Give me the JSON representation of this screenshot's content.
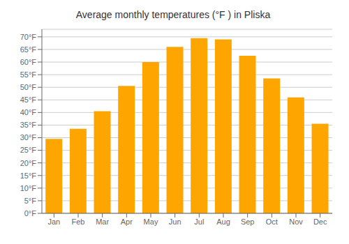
{
  "chart_data": {
    "type": "bar",
    "title": "Average monthly temperatures (°F ) in Pliska",
    "categories": [
      "Jan",
      "Feb",
      "Mar",
      "Apr",
      "May",
      "Jun",
      "Jul",
      "Aug",
      "Sep",
      "Oct",
      "Nov",
      "Dec"
    ],
    "values": [
      29.5,
      33.5,
      40.5,
      50.5,
      60.0,
      66.0,
      69.5,
      69.0,
      62.5,
      53.5,
      46.0,
      35.5
    ],
    "color": "#FFA500",
    "ylim": [
      0,
      73
    ],
    "yticks": [
      {
        "value": 0,
        "label": "0°F"
      },
      {
        "value": 5,
        "label": "5°F"
      },
      {
        "value": 10,
        "label": "10°F"
      },
      {
        "value": 15,
        "label": "15°F"
      },
      {
        "value": 20,
        "label": "20°F"
      },
      {
        "value": 25,
        "label": "25°F"
      },
      {
        "value": 30,
        "label": "30°F"
      },
      {
        "value": 35,
        "label": "35°F"
      },
      {
        "value": 40,
        "label": "40°F"
      },
      {
        "value": 45,
        "label": "45°F"
      },
      {
        "value": 50,
        "label": "50°F"
      },
      {
        "value": 55,
        "label": "55°F"
      },
      {
        "value": 60,
        "label": "60°F"
      },
      {
        "value": 65,
        "label": "65°F"
      },
      {
        "value": 70,
        "label": "70°F"
      }
    ],
    "grid": true
  }
}
